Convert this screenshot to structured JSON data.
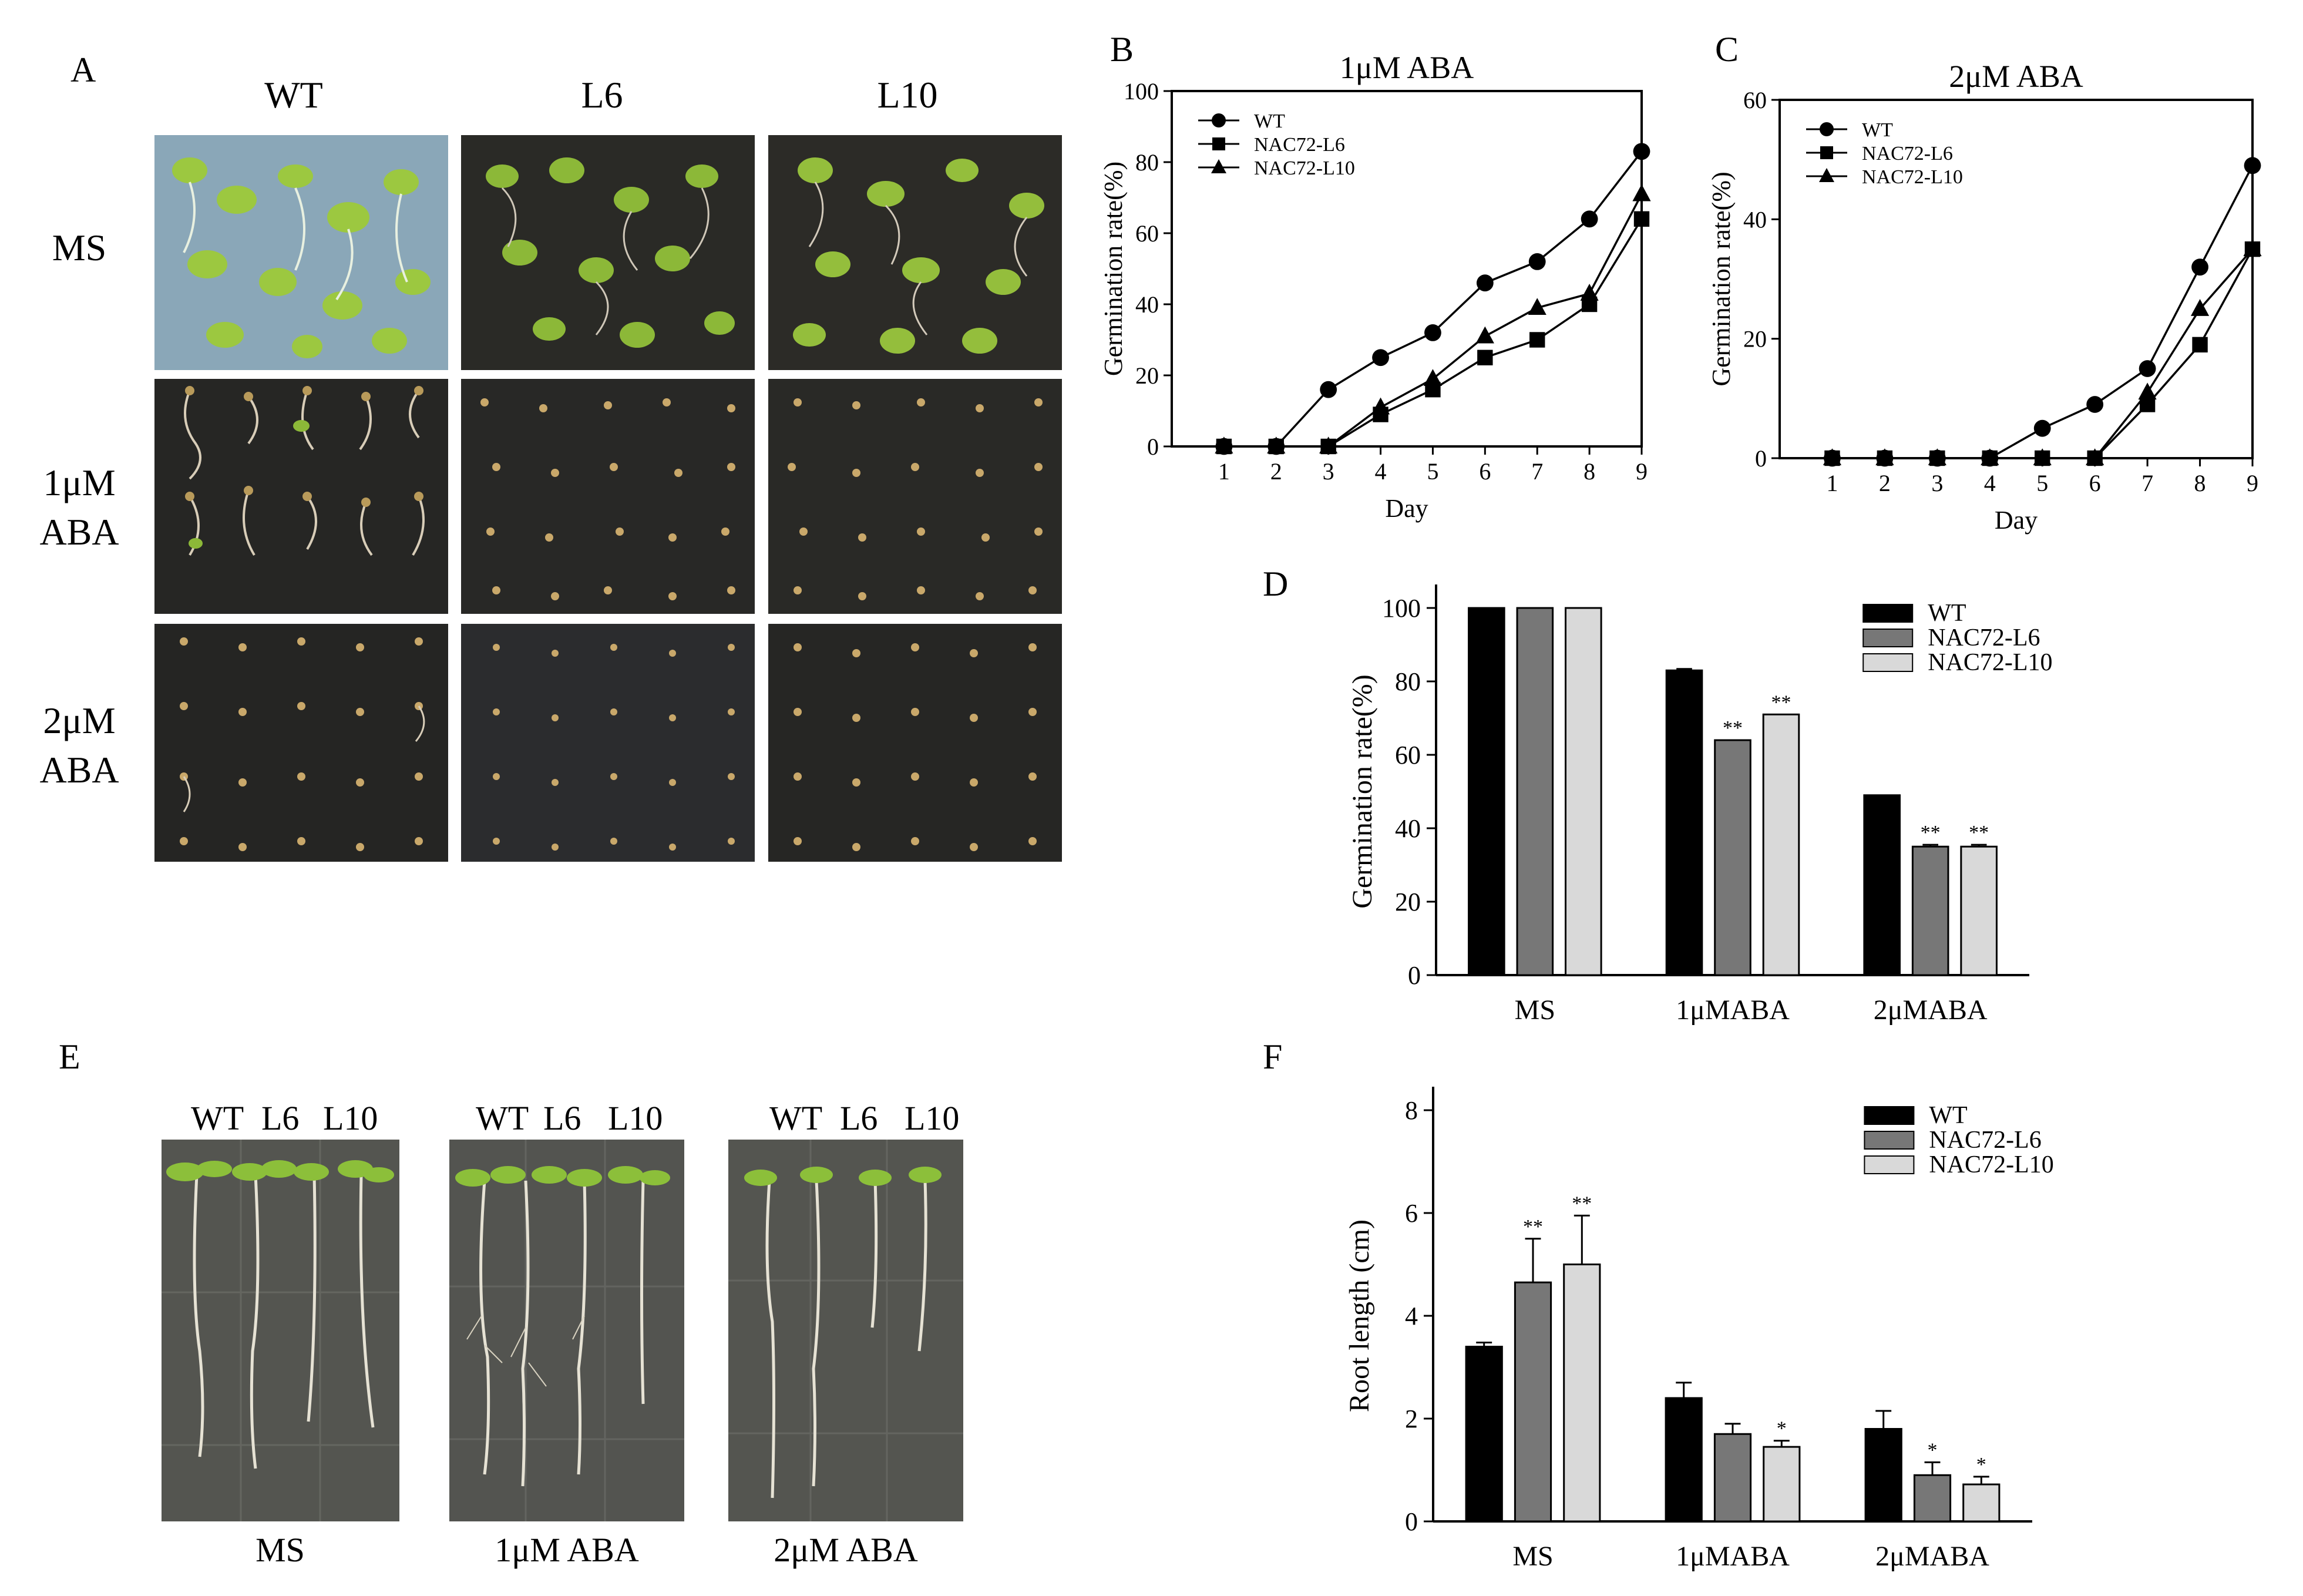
{
  "panels": {
    "A": {
      "letter": "A",
      "columns": [
        "WT",
        "L6",
        "L10"
      ],
      "rows": [
        {
          "line1": "MS",
          "line2": ""
        },
        {
          "line1": "1μM",
          "line2": "ABA"
        },
        {
          "line1": "2μM",
          "line2": "ABA"
        }
      ]
    },
    "B": {
      "letter": "B"
    },
    "C": {
      "letter": "C"
    },
    "D": {
      "letter": "D"
    },
    "E": {
      "letter": "E",
      "groups": [
        {
          "labels": [
            "WT",
            "L6",
            "L10"
          ],
          "caption": "MS"
        },
        {
          "labels": [
            "WT",
            "L6",
            "L10"
          ],
          "caption": "1μM ABA"
        },
        {
          "labels": [
            "WT",
            "L6",
            "L10"
          ],
          "caption": "2μM ABA"
        }
      ]
    },
    "F": {
      "letter": "F"
    }
  },
  "colors": {
    "wt": "#000000",
    "l6": "#777777",
    "l10": "#d9d9d9"
  },
  "chart_data": [
    {
      "id": "B",
      "type": "line",
      "title": "1μM ABA",
      "xlabel": "Day",
      "ylabel": "Germination rate(%)",
      "x": [
        1,
        2,
        3,
        4,
        5,
        6,
        7,
        8,
        9
      ],
      "xlim": [
        0,
        9
      ],
      "ylim": [
        0,
        100
      ],
      "yticks": [
        0,
        20,
        40,
        60,
        80,
        100
      ],
      "legend_position": "top-left",
      "series": [
        {
          "name": "WT",
          "marker": "circle",
          "values": [
            0,
            0,
            16,
            25,
            32,
            46,
            52,
            64,
            83
          ]
        },
        {
          "name": "NAC72-L6",
          "marker": "square",
          "values": [
            0,
            0,
            0,
            9,
            16,
            25,
            30,
            40,
            64
          ]
        },
        {
          "name": "NAC72-L10",
          "marker": "triangle",
          "values": [
            0,
            0,
            0,
            11,
            19,
            31,
            39,
            43,
            71
          ]
        }
      ]
    },
    {
      "id": "C",
      "type": "line",
      "title": "2μM ABA",
      "xlabel": "Day",
      "ylabel": "Germination rate(%)",
      "x": [
        1,
        2,
        3,
        4,
        5,
        6,
        7,
        8,
        9
      ],
      "xlim": [
        0,
        9
      ],
      "ylim": [
        0,
        60
      ],
      "yticks": [
        0,
        20,
        40,
        60
      ],
      "legend_position": "top-left",
      "series": [
        {
          "name": "WT",
          "marker": "circle",
          "values": [
            0,
            0,
            0,
            0,
            5,
            9,
            15,
            32,
            49
          ]
        },
        {
          "name": "NAC72-L6",
          "marker": "square",
          "values": [
            0,
            0,
            0,
            0,
            0,
            0,
            9,
            19,
            35
          ]
        },
        {
          "name": "NAC72-L10",
          "marker": "triangle",
          "values": [
            0,
            0,
            0,
            0,
            0,
            0,
            11,
            25,
            35
          ]
        }
      ]
    },
    {
      "id": "D",
      "type": "bar",
      "xlabel": "",
      "ylabel": "Germination rate(%)",
      "categories": [
        "MS",
        "1μMABA",
        "2μMABA"
      ],
      "ylim": [
        0,
        100
      ],
      "yticks": [
        0,
        20,
        40,
        60,
        80,
        100
      ],
      "legend_position": "top-right",
      "series": [
        {
          "name": "WT",
          "values": [
            100,
            83,
            49
          ],
          "errors": [
            0,
            0.4,
            0
          ],
          "sig": [
            "",
            "",
            ""
          ]
        },
        {
          "name": "NAC72-L6",
          "values": [
            100,
            64,
            35
          ],
          "errors": [
            0,
            0,
            0.5
          ],
          "sig": [
            "",
            "**",
            "**"
          ]
        },
        {
          "name": "NAC72-L10",
          "values": [
            100,
            71,
            35
          ],
          "errors": [
            0,
            0,
            0.5
          ],
          "sig": [
            "",
            "**",
            "**"
          ]
        }
      ]
    },
    {
      "id": "F",
      "type": "bar",
      "xlabel": "",
      "ylabel": "Root length (cm)",
      "categories": [
        "MS",
        "1μMABA",
        "2μMABA"
      ],
      "ylim": [
        0,
        8
      ],
      "yticks": [
        0,
        2,
        4,
        6,
        8
      ],
      "legend_position": "top-right",
      "series": [
        {
          "name": "WT",
          "values": [
            3.4,
            2.4,
            1.8
          ],
          "errors": [
            0.08,
            0.3,
            0.35
          ],
          "sig": [
            "",
            "",
            ""
          ]
        },
        {
          "name": "NAC72-L6",
          "values": [
            4.65,
            1.7,
            0.9
          ],
          "errors": [
            0.85,
            0.2,
            0.25
          ],
          "sig": [
            "**",
            "",
            "*"
          ]
        },
        {
          "name": "NAC72-L10",
          "values": [
            5.0,
            1.45,
            0.72
          ],
          "errors": [
            0.95,
            0.12,
            0.15
          ],
          "sig": [
            "**",
            "*",
            "*"
          ]
        }
      ]
    }
  ]
}
